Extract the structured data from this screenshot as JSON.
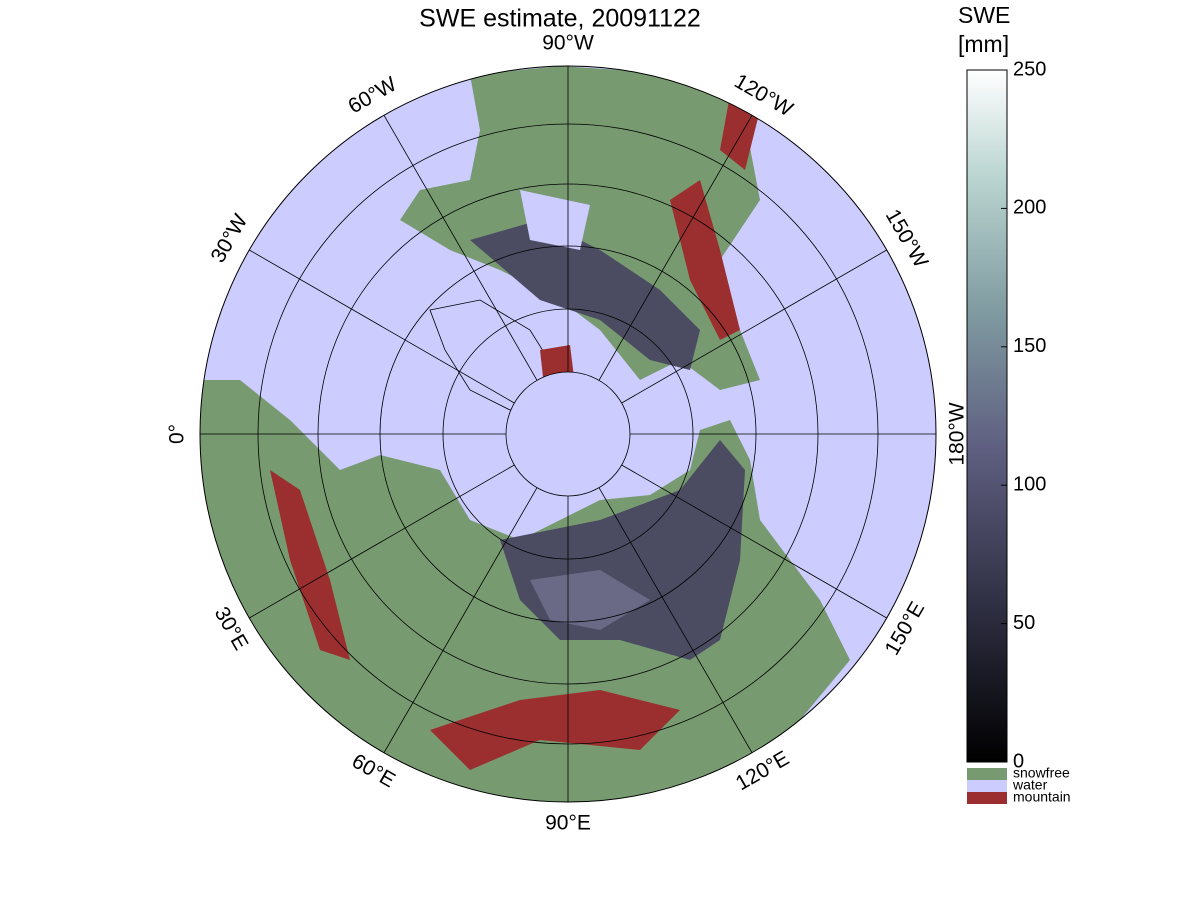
{
  "title": "SWE estimate, 20091122",
  "map": {
    "longitude_labels": [
      "90°W",
      "60°W",
      "30°W",
      "0°",
      "30°E",
      "60°E",
      "90°E",
      "120°E",
      "150°E",
      "180°W",
      "150°W",
      "120°W"
    ]
  },
  "colorbar": {
    "label_lines": [
      "SWE",
      "[mm]"
    ],
    "lim": [
      0,
      250
    ],
    "ticks": [
      0,
      50,
      100,
      150,
      200,
      250
    ]
  },
  "legend": [
    {
      "name": "snowfree",
      "color": "#779a71"
    },
    {
      "name": "water",
      "color": "#ccccff"
    },
    {
      "name": "mountain",
      "color": "#9b2f2f"
    }
  ]
}
